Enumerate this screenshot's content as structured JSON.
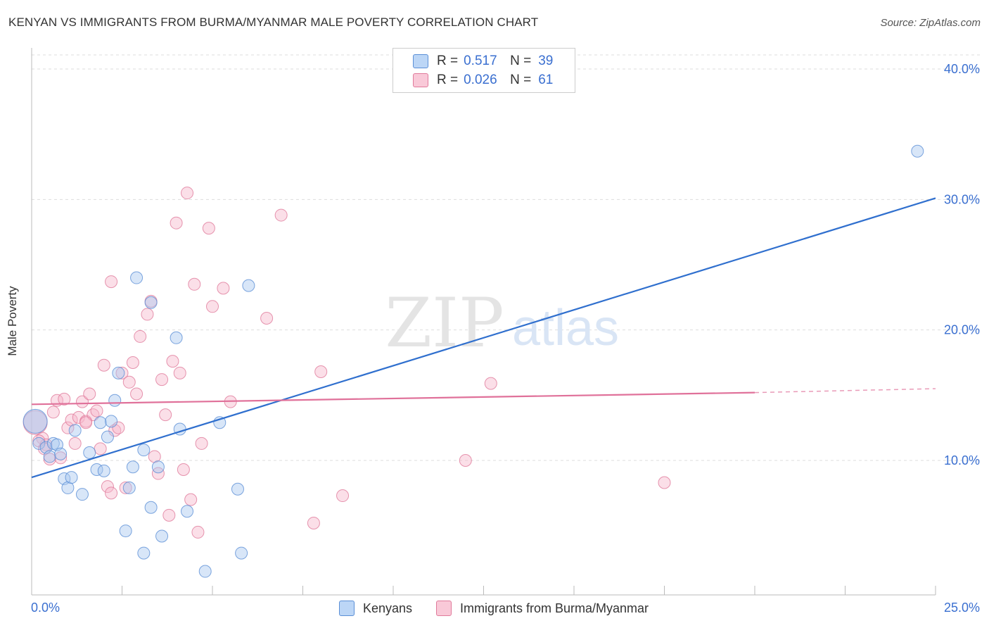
{
  "title": "KENYAN VS IMMIGRANTS FROM BURMA/MYANMAR MALE POVERTY CORRELATION CHART",
  "source": "Source: ZipAtlas.com",
  "watermark": {
    "zip": "ZIP",
    "atlas": "atlas"
  },
  "legend": {
    "r_label": "R =",
    "n_label": "N =",
    "series": [
      {
        "name": "Kenyans",
        "r": "0.517",
        "n": "39",
        "fill": "#a8c8f0",
        "stroke": "#5b8fd6"
      },
      {
        "name": "Immigrants from Burma/Myanmar",
        "r": "0.026",
        "n": "61",
        "fill": "#f7b8cb",
        "stroke": "#e07a9b"
      }
    ]
  },
  "chart_data": {
    "type": "scatter",
    "title": "KENYAN VS IMMIGRANTS FROM BURMA/MYANMAR MALE POVERTY CORRELATION CHART",
    "xlabel": "",
    "ylabel": "Male Poverty",
    "xlim": [
      0,
      25
    ],
    "ylim": [
      0,
      42
    ],
    "x_tick_labels": [
      "0.0%",
      "25.0%"
    ],
    "y_ticks": [
      10,
      20,
      30,
      40
    ],
    "y_tick_labels": [
      "10.0%",
      "20.0%",
      "30.0%",
      "40.0%"
    ],
    "grid": true,
    "series": [
      {
        "name": "Kenyans",
        "color": "#5b8fd6",
        "fill": "#a8c8f0",
        "points": [
          [
            0.1,
            13.0,
            "big"
          ],
          [
            0.2,
            11.3
          ],
          [
            0.4,
            11.0
          ],
          [
            0.5,
            10.3
          ],
          [
            0.6,
            11.3
          ],
          [
            0.7,
            11.2
          ],
          [
            0.8,
            10.5
          ],
          [
            0.9,
            8.6
          ],
          [
            1.0,
            7.9
          ],
          [
            1.1,
            8.7
          ],
          [
            1.2,
            12.3
          ],
          [
            1.4,
            7.4
          ],
          [
            1.6,
            10.6
          ],
          [
            1.8,
            9.3
          ],
          [
            1.9,
            12.9
          ],
          [
            2.0,
            9.2
          ],
          [
            2.1,
            11.8
          ],
          [
            2.2,
            13.0
          ],
          [
            2.3,
            14.6
          ],
          [
            2.4,
            16.7
          ],
          [
            2.6,
            4.6
          ],
          [
            2.7,
            7.9
          ],
          [
            2.8,
            9.5
          ],
          [
            2.9,
            24.0
          ],
          [
            3.1,
            10.8
          ],
          [
            3.1,
            2.9
          ],
          [
            3.3,
            22.1
          ],
          [
            3.3,
            6.4
          ],
          [
            3.5,
            9.5
          ],
          [
            3.6,
            4.2
          ],
          [
            4.0,
            19.4
          ],
          [
            4.1,
            12.4
          ],
          [
            4.3,
            6.1
          ],
          [
            4.8,
            1.5
          ],
          [
            5.2,
            12.9
          ],
          [
            5.7,
            7.8
          ],
          [
            5.8,
            2.9
          ],
          [
            6.0,
            23.4
          ],
          [
            24.5,
            33.7
          ]
        ],
        "trend": {
          "x": [
            0,
            25
          ],
          "y": [
            8.7,
            30.1
          ]
        }
      },
      {
        "name": "Immigrants from Burma/Myanmar",
        "color": "#e07a9b",
        "fill": "#f7b8cb",
        "points": [
          [
            0.1,
            12.9,
            "big"
          ],
          [
            0.3,
            11.7
          ],
          [
            0.4,
            11.2
          ],
          [
            0.5,
            10.1
          ],
          [
            0.6,
            13.7
          ],
          [
            0.7,
            14.6
          ],
          [
            0.8,
            10.2
          ],
          [
            0.9,
            14.7
          ],
          [
            1.0,
            12.5
          ],
          [
            1.1,
            13.1
          ],
          [
            1.2,
            11.3
          ],
          [
            1.3,
            13.3
          ],
          [
            1.4,
            14.5
          ],
          [
            1.5,
            13.0
          ],
          [
            1.6,
            15.1
          ],
          [
            1.7,
            13.5
          ],
          [
            1.8,
            13.8
          ],
          [
            1.9,
            10.9
          ],
          [
            2.0,
            17.3
          ],
          [
            2.1,
            8.0
          ],
          [
            2.2,
            7.5
          ],
          [
            2.2,
            23.7
          ],
          [
            2.3,
            12.3
          ],
          [
            2.5,
            16.7
          ],
          [
            2.6,
            7.9
          ],
          [
            2.7,
            16.0
          ],
          [
            2.8,
            17.5
          ],
          [
            2.9,
            15.1
          ],
          [
            3.0,
            19.5
          ],
          [
            3.2,
            21.2
          ],
          [
            3.3,
            22.2
          ],
          [
            3.4,
            10.3
          ],
          [
            3.5,
            9.0
          ],
          [
            3.6,
            16.2
          ],
          [
            3.7,
            13.5
          ],
          [
            3.8,
            5.8
          ],
          [
            3.9,
            17.6
          ],
          [
            4.0,
            28.2
          ],
          [
            4.1,
            16.7
          ],
          [
            4.2,
            9.3
          ],
          [
            4.3,
            30.5
          ],
          [
            4.4,
            7.0
          ],
          [
            4.5,
            23.5
          ],
          [
            4.6,
            4.5
          ],
          [
            4.7,
            11.3
          ],
          [
            4.9,
            27.8
          ],
          [
            5.0,
            21.8
          ],
          [
            5.3,
            23.2
          ],
          [
            5.5,
            14.5
          ],
          [
            6.5,
            20.9
          ],
          [
            6.9,
            28.8
          ],
          [
            7.8,
            5.2
          ],
          [
            8.0,
            16.8
          ],
          [
            8.6,
            7.3
          ],
          [
            12.0,
            10.0
          ],
          [
            12.7,
            15.9
          ],
          [
            17.5,
            8.3
          ],
          [
            0.2,
            11.5
          ],
          [
            0.35,
            10.9
          ],
          [
            1.5,
            12.9
          ],
          [
            2.4,
            12.5
          ]
        ],
        "trend": {
          "x": [
            0,
            20,
            25
          ],
          "y": [
            14.3,
            15.2,
            15.5
          ],
          "solid_until": 20
        }
      }
    ]
  }
}
